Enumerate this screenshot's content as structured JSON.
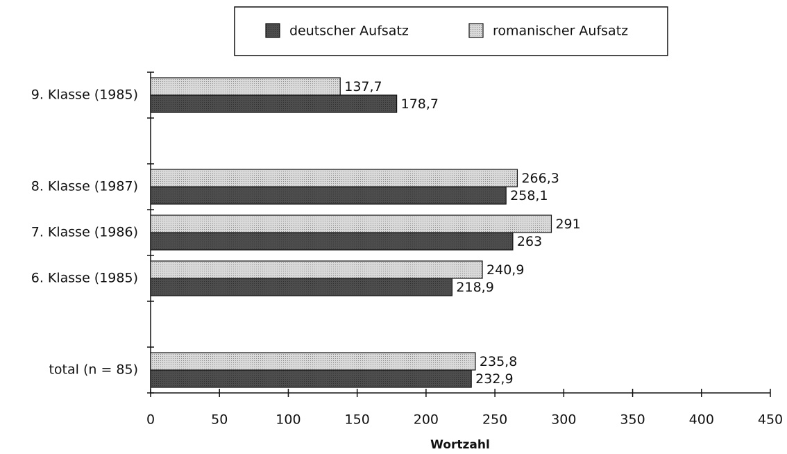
{
  "chart_data": {
    "type": "bar",
    "orientation": "horizontal",
    "categories": [
      "9. Klasse (1985)",
      null,
      "8. Klasse (1987)",
      "7. Klasse (1986)",
      "6. Klasse (1985)",
      null,
      "total (n = 85)"
    ],
    "series": [
      {
        "name": "deutscher Aufsatz",
        "color": "#4d4d4d",
        "values": [
          178.7,
          null,
          258.1,
          263,
          218.9,
          null,
          232.9
        ],
        "value_labels": [
          "178,7",
          null,
          "258,1",
          "263",
          "218,9",
          null,
          "232,9"
        ]
      },
      {
        "name": "romanischer Aufsatz",
        "color": "#d9d9d9",
        "values": [
          137.7,
          null,
          266.3,
          291,
          240.9,
          null,
          235.8
        ],
        "value_labels": [
          "137,7",
          null,
          "266,3",
          "291",
          "240,9",
          null,
          "235,8"
        ]
      }
    ],
    "xlabel": "Wortzahl",
    "xlim": [
      0,
      450
    ],
    "xticks": [
      0,
      50,
      100,
      150,
      200,
      250,
      300,
      350,
      400,
      450
    ],
    "legend": "top"
  }
}
